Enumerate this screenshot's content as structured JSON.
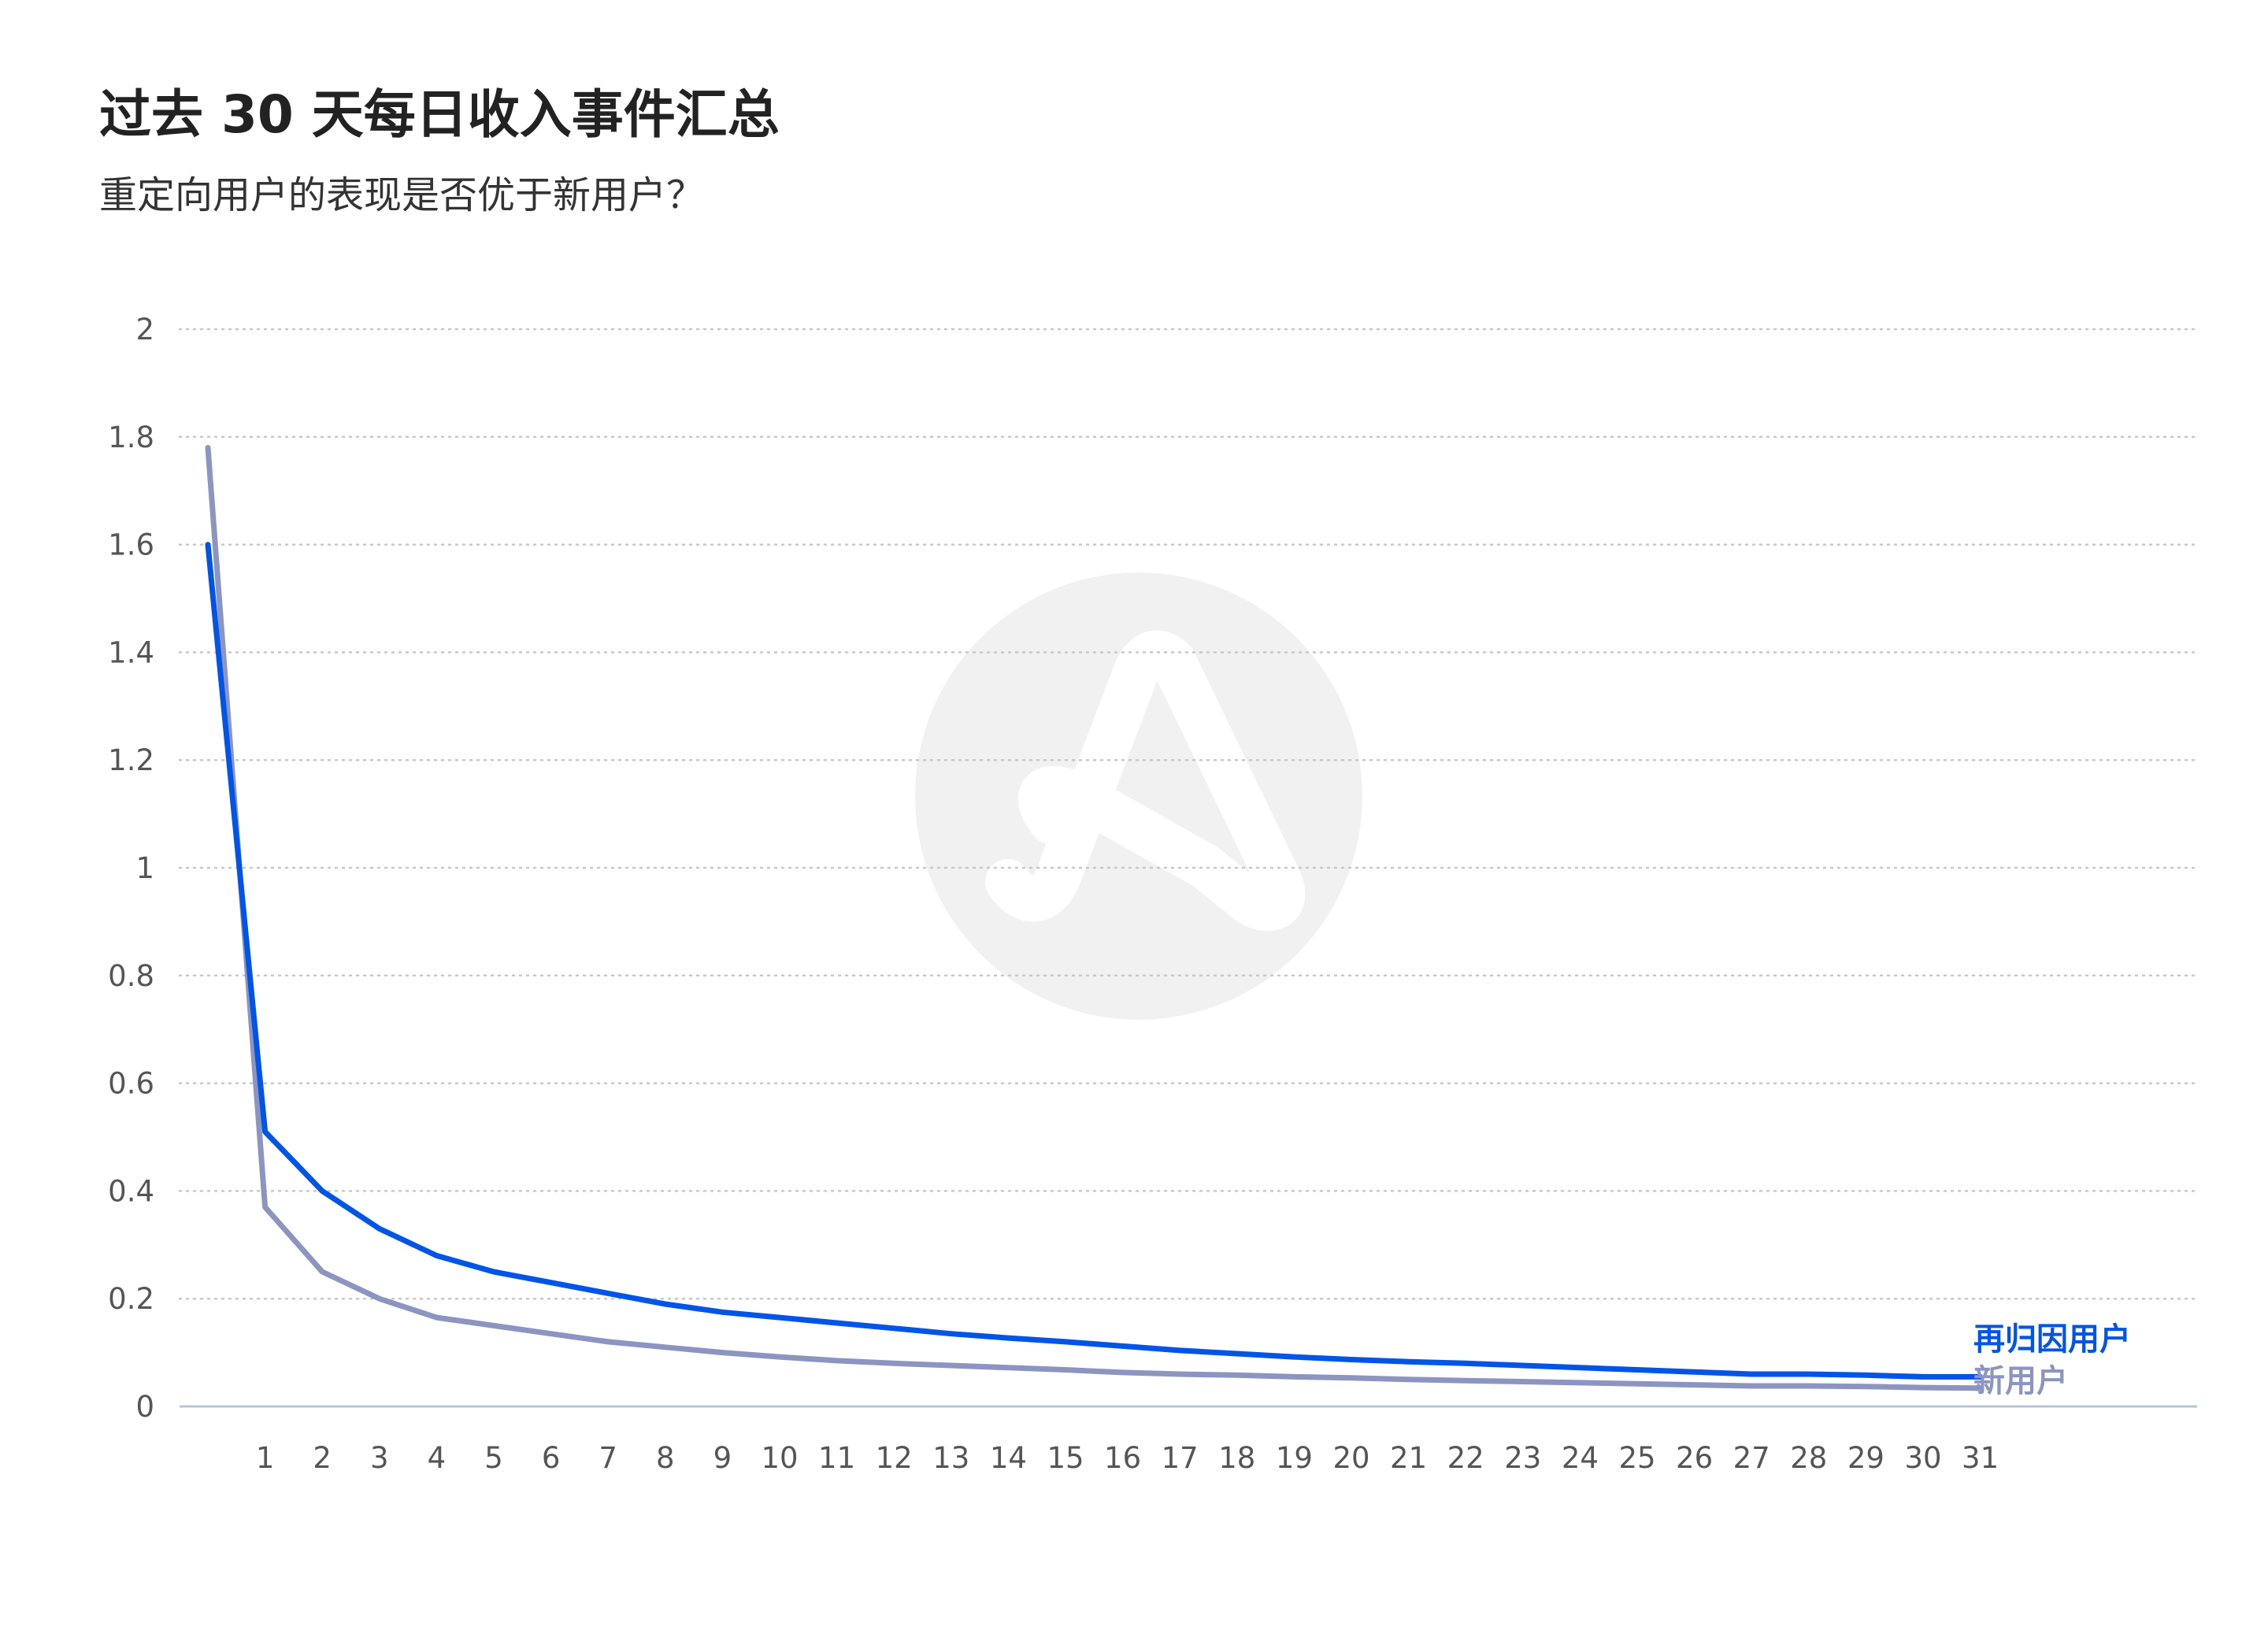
{
  "title": "过去 30 天每日收入事件汇总",
  "subtitle": "重定向用户的表现是否优于新用户？",
  "colors": {
    "retargeted": "#0055e8",
    "new_users": "#8c95c0",
    "grid": "#c8c8c8",
    "axis": "#b8c4d6",
    "watermark": "#f1f1f1"
  },
  "watermark": {
    "icon": "logo-icon"
  },
  "chart_data": {
    "type": "line",
    "title": "过去 30 天每日收入事件汇总",
    "subtitle": "重定向用户的表现是否优于新用户？",
    "x": [
      0,
      1,
      2,
      3,
      4,
      5,
      6,
      7,
      8,
      9,
      10,
      11,
      12,
      13,
      14,
      15,
      16,
      17,
      18,
      19,
      20,
      21,
      22,
      23,
      24,
      25,
      26,
      27,
      28,
      29,
      30,
      31
    ],
    "x_tick_labels": [
      "1",
      "2",
      "3",
      "4",
      "5",
      "6",
      "7",
      "8",
      "9",
      "10",
      "11",
      "12",
      "13",
      "14",
      "15",
      "16",
      "17",
      "18",
      "19",
      "20",
      "21",
      "22",
      "23",
      "24",
      "25",
      "26",
      "27",
      "28",
      "29",
      "30",
      "31"
    ],
    "x_tick_values": [
      1,
      2,
      3,
      4,
      5,
      6,
      7,
      8,
      9,
      10,
      11,
      12,
      13,
      14,
      15,
      16,
      17,
      18,
      19,
      20,
      21,
      22,
      23,
      24,
      25,
      26,
      27,
      28,
      29,
      30,
      31
    ],
    "ylim": [
      0,
      2
    ],
    "y_ticks": [
      0,
      0.2,
      0.4,
      0.6,
      0.8,
      1,
      1.2,
      1.4,
      1.6,
      1.8,
      2
    ],
    "y_tick_labels": [
      "0",
      "0.2",
      "0.4",
      "0.6",
      "0.8",
      "1",
      "1.2",
      "1.4",
      "1.6",
      "1.8",
      "2"
    ],
    "grid": "horizontal-dotted",
    "legend": "right-end-of-lines",
    "series": [
      {
        "name": "再归因用户",
        "color": "#0055e8",
        "values": [
          1.6,
          0.51,
          0.4,
          0.33,
          0.28,
          0.25,
          0.23,
          0.21,
          0.19,
          0.175,
          0.165,
          0.155,
          0.145,
          0.135,
          0.127,
          0.12,
          0.112,
          0.104,
          0.098,
          0.092,
          0.087,
          0.083,
          0.08,
          0.076,
          0.072,
          0.068,
          0.064,
          0.06,
          0.06,
          0.058,
          0.055,
          0.055
        ]
      },
      {
        "name": "新用户",
        "color": "#8c95c0",
        "values": [
          1.78,
          0.37,
          0.25,
          0.2,
          0.165,
          0.15,
          0.135,
          0.12,
          0.11,
          0.1,
          0.092,
          0.085,
          0.08,
          0.076,
          0.072,
          0.068,
          0.063,
          0.06,
          0.058,
          0.055,
          0.053,
          0.05,
          0.048,
          0.046,
          0.044,
          0.042,
          0.04,
          0.038,
          0.038,
          0.037,
          0.035,
          0.034
        ]
      }
    ]
  }
}
